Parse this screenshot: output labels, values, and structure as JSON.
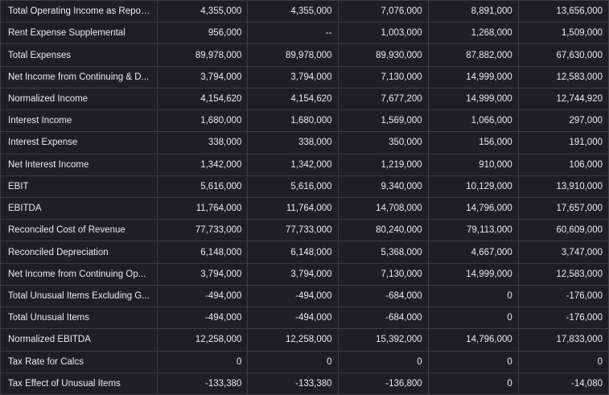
{
  "table": {
    "rows": [
      {
        "label": "Total Operating Income as Repor...",
        "values": [
          "4,355,000",
          "4,355,000",
          "7,076,000",
          "8,891,000",
          "13,656,000"
        ]
      },
      {
        "label": "Rent Expense Supplemental",
        "values": [
          "956,000",
          "--",
          "1,003,000",
          "1,268,000",
          "1,509,000"
        ]
      },
      {
        "label": "Total Expenses",
        "values": [
          "89,978,000",
          "89,978,000",
          "89,930,000",
          "87,882,000",
          "67,630,000"
        ]
      },
      {
        "label": "Net Income from Continuing & D...",
        "values": [
          "3,794,000",
          "3,794,000",
          "7,130,000",
          "14,999,000",
          "12,583,000"
        ]
      },
      {
        "label": "Normalized Income",
        "values": [
          "4,154,620",
          "4,154,620",
          "7,677,200",
          "14,999,000",
          "12,744,920"
        ]
      },
      {
        "label": "Interest Income",
        "values": [
          "1,680,000",
          "1,680,000",
          "1,569,000",
          "1,066,000",
          "297,000"
        ]
      },
      {
        "label": "Interest Expense",
        "values": [
          "338,000",
          "338,000",
          "350,000",
          "156,000",
          "191,000"
        ]
      },
      {
        "label": "Net Interest Income",
        "values": [
          "1,342,000",
          "1,342,000",
          "1,219,000",
          "910,000",
          "106,000"
        ]
      },
      {
        "label": "EBIT",
        "values": [
          "5,616,000",
          "5,616,000",
          "9,340,000",
          "10,129,000",
          "13,910,000"
        ]
      },
      {
        "label": "EBITDA",
        "values": [
          "11,764,000",
          "11,764,000",
          "14,708,000",
          "14,796,000",
          "17,657,000"
        ]
      },
      {
        "label": "Reconciled Cost of Revenue",
        "values": [
          "77,733,000",
          "77,733,000",
          "80,240,000",
          "79,113,000",
          "60,609,000"
        ]
      },
      {
        "label": "Reconciled Depreciation",
        "values": [
          "6,148,000",
          "6,148,000",
          "5,368,000",
          "4,667,000",
          "3,747,000"
        ]
      },
      {
        "label": "Net Income from Continuing Op...",
        "values": [
          "3,794,000",
          "3,794,000",
          "7,130,000",
          "14,999,000",
          "12,583,000"
        ]
      },
      {
        "label": "Total Unusual Items Excluding G...",
        "values": [
          "-494,000",
          "-494,000",
          "-684,000",
          "0",
          "-176,000"
        ]
      },
      {
        "label": "Total Unusual Items",
        "values": [
          "-494,000",
          "-494,000",
          "-684,000",
          "0",
          "-176,000"
        ]
      },
      {
        "label": "Normalized EBITDA",
        "values": [
          "12,258,000",
          "12,258,000",
          "15,392,000",
          "14,796,000",
          "17,833,000"
        ]
      },
      {
        "label": "Tax Rate for Calcs",
        "values": [
          "0",
          "0",
          "0",
          "0",
          "0"
        ]
      },
      {
        "label": "Tax Effect of Unusual Items",
        "values": [
          "-133,380",
          "-133,380",
          "-136,800",
          "0",
          "-14,080"
        ]
      }
    ]
  }
}
